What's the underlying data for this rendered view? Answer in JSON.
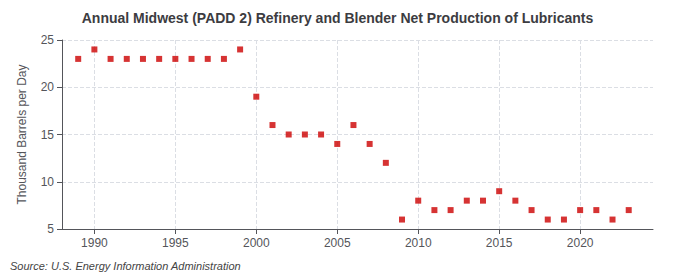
{
  "chart_data": {
    "type": "scatter",
    "title": "Annual Midwest (PADD 2) Refinery and Blender Net Production of Lubricants",
    "ylabel": "Thousand Barrels per Day",
    "source": "Source: U.S. Energy Information Administration",
    "color": "#cc0000",
    "marker": "square",
    "x": [
      1989,
      1990,
      1991,
      1992,
      1993,
      1994,
      1995,
      1996,
      1997,
      1998,
      1999,
      2000,
      2001,
      2002,
      2003,
      2004,
      2005,
      2006,
      2007,
      2008,
      2009,
      2010,
      2011,
      2012,
      2013,
      2014,
      2015,
      2016,
      2017,
      2018,
      2019,
      2020,
      2021,
      2022,
      2023
    ],
    "values": [
      23.0,
      24.0,
      23.0,
      23.0,
      23.0,
      23.0,
      23.0,
      23.0,
      23.0,
      23.0,
      24.0,
      19.0,
      16.0,
      15.0,
      15.0,
      15.0,
      14.0,
      16.0,
      14.0,
      12.0,
      6.0,
      8.0,
      7.0,
      7.0,
      8.0,
      8.0,
      9.0,
      8.0,
      7.0,
      6.0,
      6.0,
      7.0,
      7.0,
      6.0,
      7.0
    ],
    "xlim": [
      1988.0,
      2024.5
    ],
    "xticks": [
      1990,
      1995,
      2000,
      2005,
      2010,
      2015,
      2020
    ],
    "ylim": [
      5,
      25
    ],
    "yticks": [
      5,
      10,
      15,
      20,
      25
    ],
    "grid": true
  }
}
